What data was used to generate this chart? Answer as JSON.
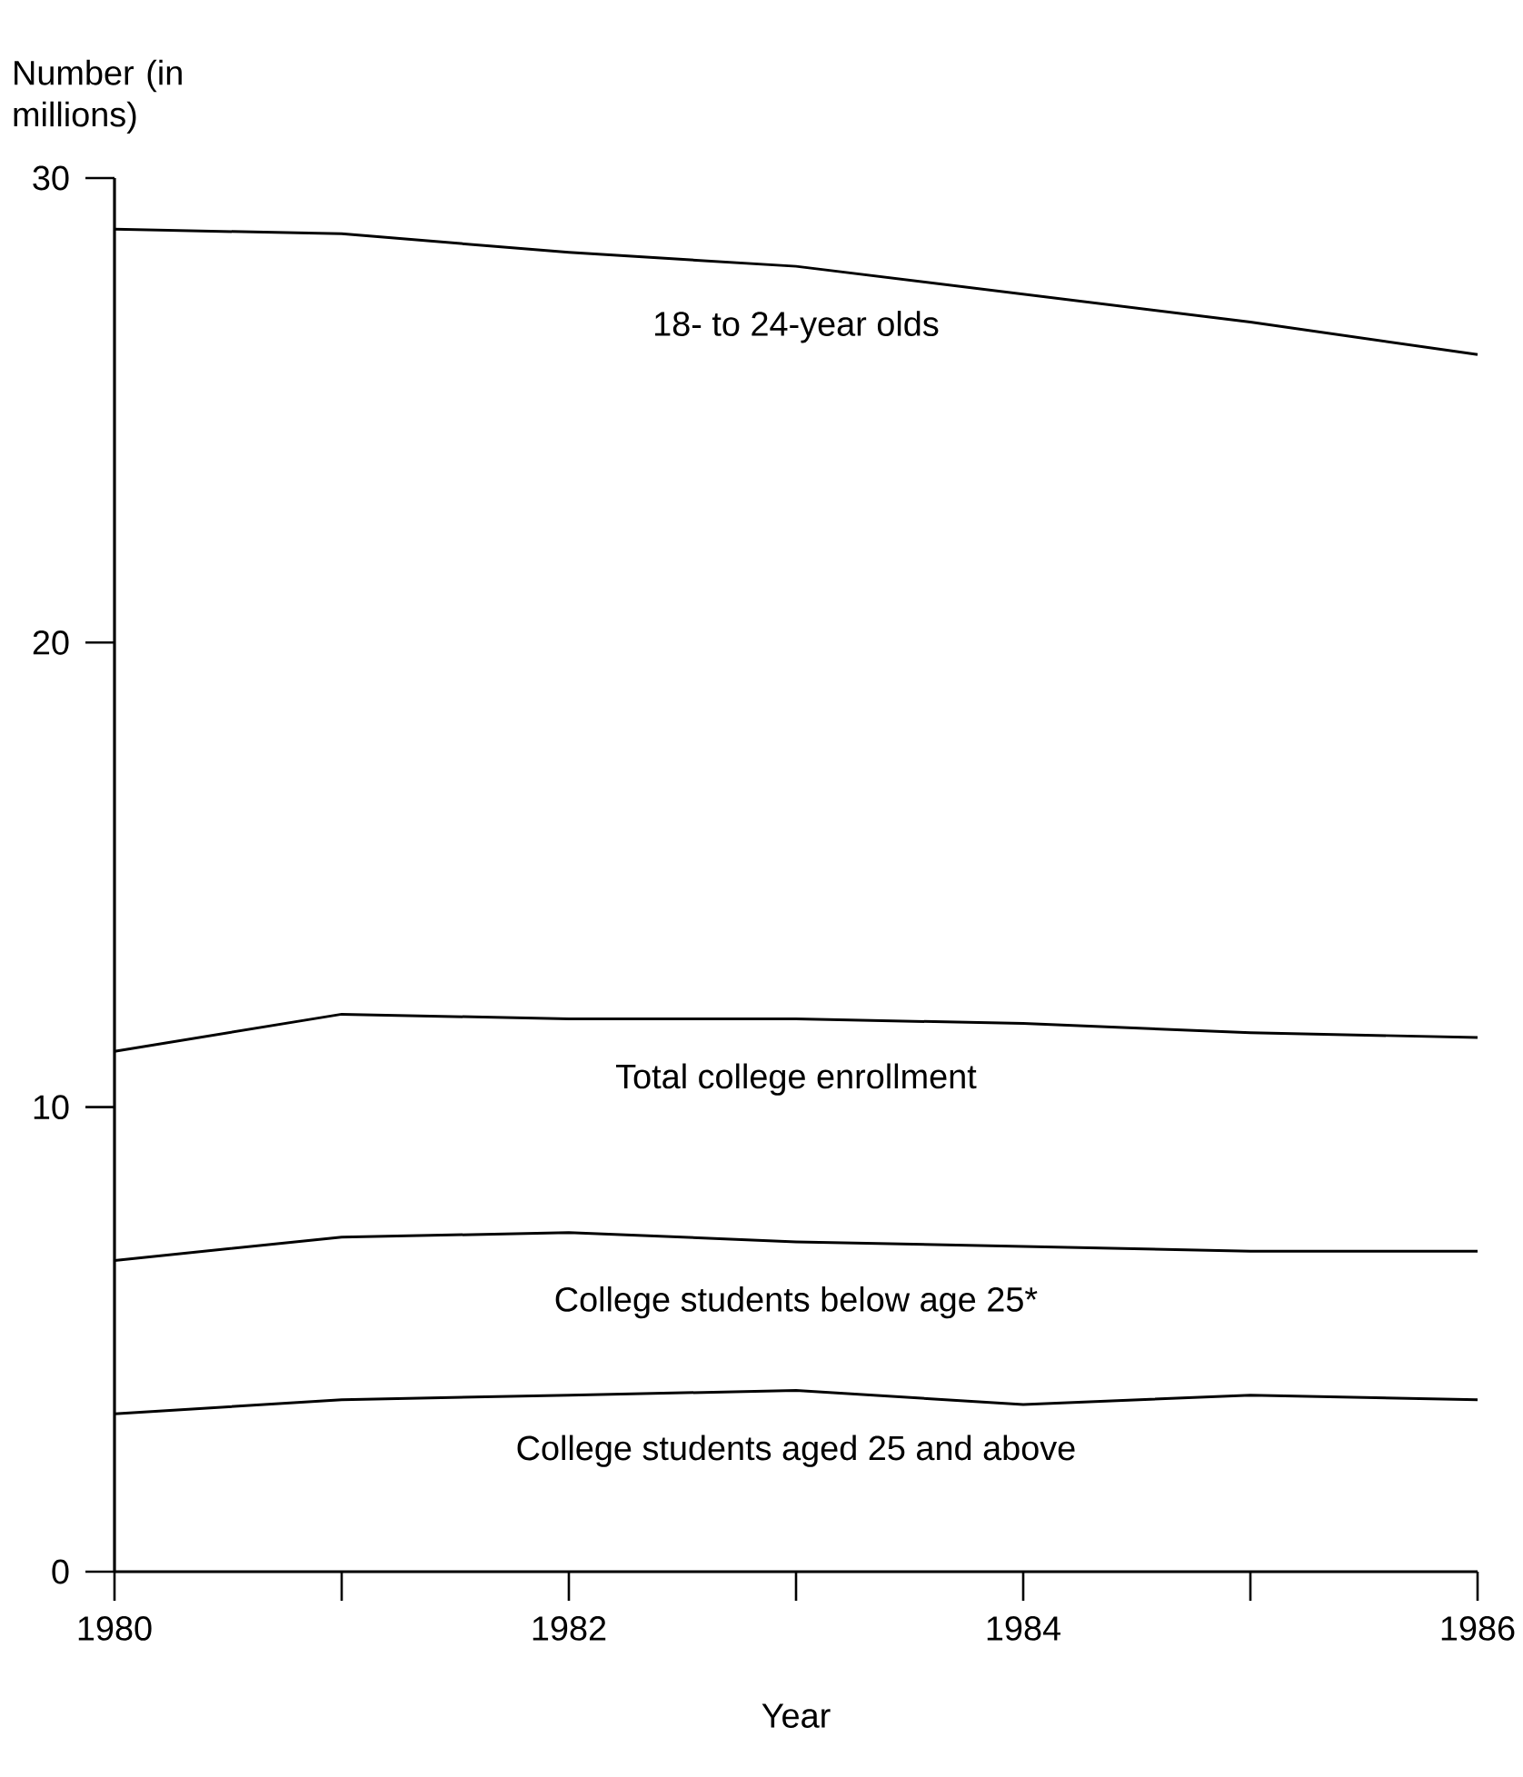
{
  "chart_data": {
    "type": "line",
    "ylabel": "Number (in millions)",
    "xlabel": "Year",
    "x": [
      1980,
      1981,
      1982,
      1983,
      1984,
      1985,
      1986
    ],
    "series": [
      {
        "name": "18- to 24-year olds",
        "color": "#000000",
        "values": [
          28.9,
          28.8,
          28.4,
          28.1,
          27.5,
          26.9,
          26.2
        ]
      },
      {
        "name": "Total college enrollment",
        "color": "#000000",
        "values": [
          11.2,
          12.0,
          11.9,
          11.9,
          11.8,
          11.6,
          11.5
        ]
      },
      {
        "name": "College students below age 25*",
        "color": "#000000",
        "values": [
          6.7,
          7.2,
          7.3,
          7.1,
          7.0,
          6.9,
          6.9
        ]
      },
      {
        "name": "College students aged 25 and above",
        "color": "#000000",
        "values": [
          3.4,
          3.7,
          3.8,
          3.9,
          3.6,
          3.8,
          3.7
        ]
      }
    ],
    "xlim": [
      1980,
      1986
    ],
    "ylim": [
      0,
      30
    ],
    "xticks": [
      1980,
      {
        "value": 1981,
        "label": null
      },
      1982,
      {
        "value": 1983,
        "label": null
      },
      1984,
      {
        "value": 1985,
        "label": null
      },
      1986
    ],
    "yticks": [
      0,
      10,
      20,
      30
    ],
    "marker": "none",
    "line_style": "solid"
  }
}
